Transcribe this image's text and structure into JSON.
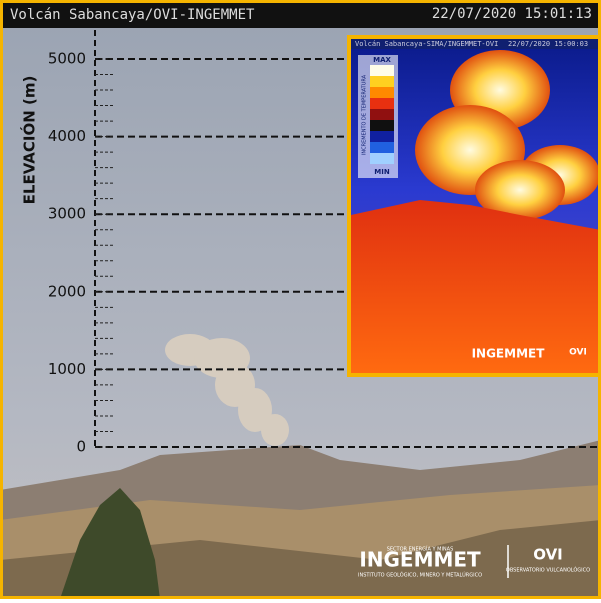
{
  "header": {
    "title": "Volcán Sabancaya/OVI-INGEMMET",
    "timestamp": "22/07/2020 15:01:13"
  },
  "scale": {
    "label": "ELEVACIÓN (m)",
    "ticks": [
      0,
      1000,
      2000,
      3000,
      4000,
      5000
    ]
  },
  "inset": {
    "title": "Volcán Sabancaya-SIMA/INGEMMET-OVI",
    "timestamp": "22/07/2020 15:00:03",
    "legend": {
      "max": "MAX",
      "min": "MIN",
      "label": "INCREMENTO DE TEMPERATURA"
    },
    "logo": "INGEMMET",
    "logo2": "OVI"
  },
  "logos": {
    "sector": "SECTOR ENERGÍA Y MINAS",
    "ingemmet": "INGEMMET",
    "institute": "INSTITUTO GEOLÓGICO, MINERO Y METALÚRGICO",
    "ovi": "OVI",
    "observatory": "OBSERVATORIO VULCANOLÓGICO"
  }
}
